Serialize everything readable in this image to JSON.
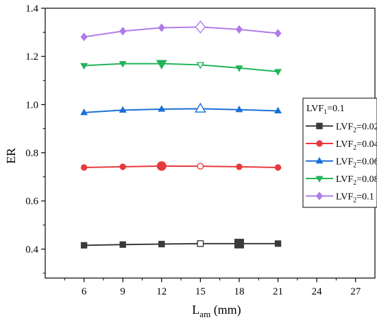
{
  "chart_data": {
    "type": "line",
    "xlabel_main": "L",
    "xlabel_sub": "am",
    "xlabel_unit": " (mm)",
    "ylabel": "ER",
    "xlim": [
      3,
      28.5
    ],
    "ylim": [
      0.28,
      1.4
    ],
    "xticks": [
      6,
      9,
      12,
      15,
      18,
      21,
      24,
      27
    ],
    "yticks": [
      0.4,
      0.6,
      0.8,
      1.0,
      1.2,
      1.4
    ],
    "ytick_labels": [
      "0.4",
      "0.6",
      "0.8",
      "1.0",
      "1.2",
      "1.4"
    ],
    "x": [
      6,
      9,
      12,
      15,
      18,
      21
    ],
    "legend_title_main": "LVF",
    "legend_title_sub": "1",
    "legend_title_value": "=0.1",
    "legend_position": "right",
    "series": [
      {
        "label_main": "LVF",
        "label_sub": "2",
        "label_value": "=0.02",
        "marker": "square",
        "color": "#3a3a3a",
        "values": [
          0.416,
          0.419,
          0.421,
          0.423,
          0.423,
          0.423
        ],
        "highlight_hollow": 15,
        "highlight_big": 18
      },
      {
        "label_main": "LVF",
        "label_sub": "2",
        "label_value": "=0.04",
        "marker": "circle",
        "color": "#e8393c",
        "values": [
          0.739,
          0.742,
          0.745,
          0.744,
          0.742,
          0.739
        ],
        "highlight_hollow": 15,
        "highlight_big": 12
      },
      {
        "label_main": "LVF",
        "label_sub": "2",
        "label_value": "=0.06",
        "marker": "triangle-up",
        "color": "#1a6fd6",
        "values": [
          0.967,
          0.977,
          0.981,
          0.983,
          0.979,
          0.974
        ],
        "highlight_hollow": 15,
        "highlight_big": null
      },
      {
        "label_main": "LVF",
        "label_sub": "2",
        "label_value": "=0.08",
        "marker": "triangle-down",
        "color": "#22b25a",
        "values": [
          1.162,
          1.17,
          1.17,
          1.165,
          1.152,
          1.137
        ],
        "highlight_hollow": 15,
        "highlight_big": 12
      },
      {
        "label_main": "LVF",
        "label_sub": "2",
        "label_value": "=0.1",
        "marker": "diamond",
        "color": "#b07be8",
        "values": [
          1.281,
          1.305,
          1.319,
          1.322,
          1.312,
          1.296
        ],
        "highlight_hollow": 15,
        "highlight_big": null
      }
    ]
  }
}
